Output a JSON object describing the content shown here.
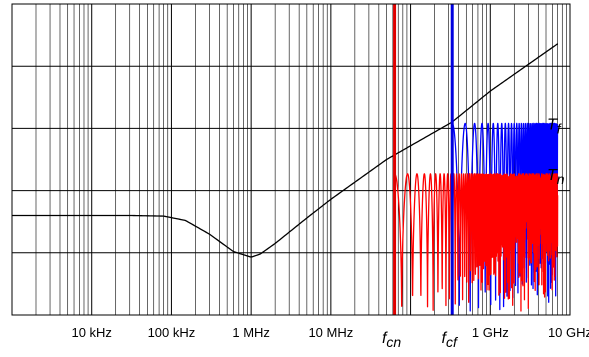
{
  "chart_data": {
    "type": "line",
    "x_scale": "log",
    "x_unit": "Hz",
    "xlim": [
      1000,
      10000000000
    ],
    "ylim": [
      0,
      5
    ],
    "grid": true,
    "title": "",
    "xlabel": "",
    "ylabel": "",
    "x_ticks": [
      {
        "value": 10000,
        "label": "10 kHz"
      },
      {
        "value": 100000,
        "label": "100 kHz"
      },
      {
        "value": 1000000,
        "label": "1 MHz"
      },
      {
        "value": 10000000,
        "label": "10 MHz"
      },
      {
        "value": 1000000000,
        "label": "1 GHz"
      },
      {
        "value": 10000000000,
        "label": "10 GHz"
      }
    ],
    "markers": [
      {
        "id": "fcn",
        "x": 63000000,
        "color": "#e00000",
        "label_main": "f",
        "label_sub": "cn"
      },
      {
        "id": "fcf",
        "x": 333000000,
        "color": "#0000e0",
        "label_main": "f",
        "label_sub": "cf"
      }
    ],
    "series": [
      {
        "name": "",
        "color": "#000000",
        "x": [
          1000,
          30000,
          80000,
          150000,
          300000,
          600000,
          1000000,
          1300000,
          2000000,
          5000000,
          10000000,
          50000000,
          330000000,
          1000000000,
          7000000000
        ],
        "y": [
          1.6,
          1.6,
          1.59,
          1.52,
          1.3,
          1.02,
          0.93,
          0.98,
          1.15,
          1.56,
          1.86,
          2.5,
          3.1,
          3.6,
          4.36
        ]
      },
      {
        "name": "T",
        "label_sub": "f",
        "color": "#0000ff",
        "x": [
          330000000,
          1000000000,
          7000000000
        ],
        "y": [
          3.08,
          3.1,
          3.1
        ],
        "style": "oscillating-cutoff",
        "cutoff": 333000000,
        "upper": 3.08,
        "lower": 0.0
      },
      {
        "name": "T",
        "label_sub": "n",
        "color": "#ff0000",
        "x": [
          63000000,
          200000000,
          7000000000
        ],
        "y": [
          2.27,
          2.23,
          2.23
        ],
        "style": "oscillating-cutoff",
        "cutoff": 63000000,
        "upper": 2.27,
        "lower": 0.0
      }
    ]
  }
}
